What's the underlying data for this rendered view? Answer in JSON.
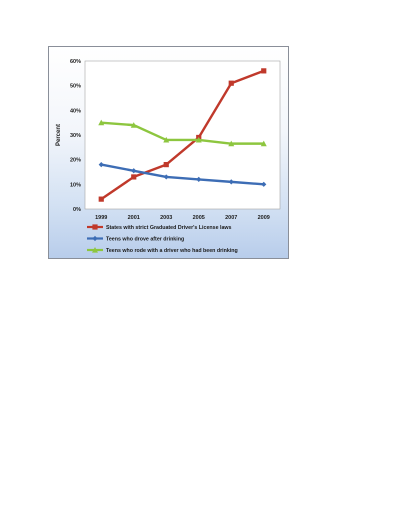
{
  "chart_data": {
    "type": "line",
    "title": "",
    "xlabel": "",
    "ylabel": "Percent",
    "categories": [
      "1999",
      "2001",
      "2003",
      "2005",
      "2007",
      "2009"
    ],
    "ylim": [
      0,
      60
    ],
    "yticks": [
      "0%",
      "10%",
      "20%",
      "30%",
      "40%",
      "50%",
      "60%"
    ],
    "ytick_values": [
      0,
      10,
      20,
      30,
      40,
      50,
      60
    ],
    "grid": false,
    "legend_position": "bottom",
    "series": [
      {
        "name": "States with strict Graduated Driver's License laws",
        "values": [
          4,
          13,
          18,
          29,
          51,
          56
        ],
        "color": "#c0392b",
        "marker": "square"
      },
      {
        "name": "Teens who drove after drinking",
        "values": [
          18,
          15.5,
          13,
          12,
          11,
          10
        ],
        "color": "#3d6db5",
        "marker": "diamond"
      },
      {
        "name": "Teens who rode with a driver who had been drinking",
        "values": [
          35,
          34,
          28,
          28,
          26.5,
          26.5
        ],
        "color": "#8dc63f",
        "marker": "triangle"
      }
    ]
  }
}
